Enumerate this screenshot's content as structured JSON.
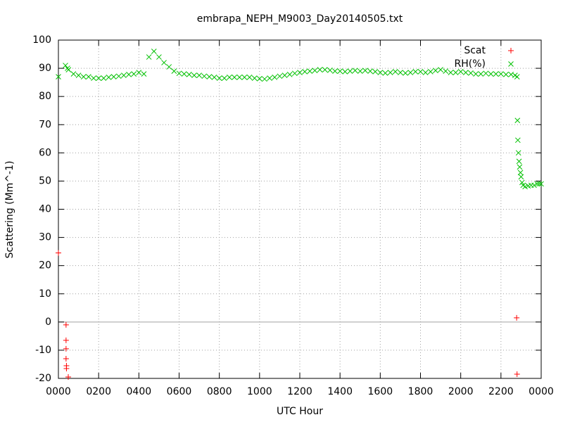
{
  "chart_data": {
    "type": "scatter",
    "title": "embrapa_NEPH_M9003_Day20140505.txt",
    "xlabel": "UTC Hour",
    "ylabel": "Scattering (Mm^-1)",
    "xlim": [
      0,
      24
    ],
    "ylim": [
      -20,
      100
    ],
    "xticks": [
      {
        "value": 0,
        "label": "0000"
      },
      {
        "value": 2,
        "label": "0200"
      },
      {
        "value": 4,
        "label": "0400"
      },
      {
        "value": 6,
        "label": "0600"
      },
      {
        "value": 8,
        "label": "0800"
      },
      {
        "value": 10,
        "label": "1000"
      },
      {
        "value": 12,
        "label": "1200"
      },
      {
        "value": 14,
        "label": "1400"
      },
      {
        "value": 16,
        "label": "1600"
      },
      {
        "value": 18,
        "label": "1800"
      },
      {
        "value": 20,
        "label": "2000"
      },
      {
        "value": 22,
        "label": "2200"
      },
      {
        "value": 24,
        "label": "0000"
      }
    ],
    "yticks": [
      -20,
      -10,
      0,
      10,
      20,
      30,
      40,
      50,
      60,
      70,
      80,
      90,
      100
    ],
    "grid": true,
    "legend": "top-right",
    "series": [
      {
        "name": "Scat",
        "color": "#ff0000",
        "marker": "plus",
        "x": [
          0,
          0.38,
          0.38,
          0.38,
          0.38,
          0.4,
          0.4,
          0.49,
          22.78,
          22.8
        ],
        "values": [
          24.5,
          -1,
          -6.5,
          -9.5,
          -13,
          -15.5,
          -16.5,
          -19.5,
          1.5,
          -18.5
        ]
      },
      {
        "name": "RH(%)",
        "color": "#00c000",
        "marker": "cross",
        "x": [
          0,
          0.35,
          0.45,
          0.5,
          0.75,
          1.0,
          1.25,
          1.5,
          1.75,
          2.0,
          2.25,
          2.5,
          2.75,
          3.0,
          3.25,
          3.5,
          3.75,
          4.0,
          4.25,
          4.5,
          4.75,
          5.0,
          5.25,
          5.5,
          5.75,
          6.0,
          6.25,
          6.5,
          6.75,
          7.0,
          7.25,
          7.5,
          7.75,
          8.0,
          8.25,
          8.5,
          8.75,
          9.0,
          9.25,
          9.5,
          9.75,
          10.0,
          10.25,
          10.5,
          10.75,
          11.0,
          11.25,
          11.5,
          11.75,
          12.0,
          12.25,
          12.5,
          12.75,
          13.0,
          13.25,
          13.5,
          13.75,
          14.0,
          14.25,
          14.5,
          14.75,
          15.0,
          15.25,
          15.5,
          15.75,
          16.0,
          16.25,
          16.5,
          16.75,
          17.0,
          17.25,
          17.5,
          17.75,
          18.0,
          18.25,
          18.5,
          18.75,
          19.0,
          19.25,
          19.5,
          19.75,
          20.0,
          20.25,
          20.5,
          20.75,
          21.0,
          21.25,
          21.5,
          21.75,
          22.0,
          22.25,
          22.5,
          22.7,
          22.8,
          22.82,
          22.84,
          22.87,
          22.9,
          22.93,
          22.97,
          23.0,
          23.05,
          23.1,
          23.2,
          23.35,
          23.5,
          23.65,
          23.8,
          23.9,
          24.0
        ],
        "values": [
          87,
          91,
          90,
          89.5,
          88,
          87.5,
          87,
          87,
          86.5,
          86.5,
          86.5,
          86.8,
          87,
          87.2,
          87.5,
          87.8,
          88,
          88.5,
          88,
          94,
          96,
          94,
          92,
          90.5,
          89,
          88.2,
          88,
          87.8,
          87.5,
          87.5,
          87.2,
          87,
          86.8,
          86.5,
          86.5,
          86.8,
          86.8,
          86.8,
          86.8,
          86.8,
          86.5,
          86.3,
          86.2,
          86.5,
          86.8,
          87.2,
          87.5,
          87.8,
          88.2,
          88.5,
          88.8,
          89,
          89.2,
          89.5,
          89.5,
          89.3,
          89,
          89,
          88.8,
          89,
          89.2,
          89,
          89.2,
          89,
          88.8,
          88.5,
          88.3,
          88.5,
          88.8,
          88.5,
          88.3,
          88.5,
          88.8,
          88.8,
          88.5,
          88.8,
          89.2,
          89.5,
          89,
          88.5,
          88.5,
          88.8,
          88.5,
          88.3,
          88,
          88,
          88.2,
          88,
          88,
          88,
          87.8,
          87.8,
          87.5,
          87,
          71.5,
          64.5,
          60,
          57,
          55,
          53,
          51.5,
          49.5,
          48.5,
          48,
          48.3,
          48.5,
          48.5,
          49,
          49,
          49
        ]
      }
    ]
  }
}
